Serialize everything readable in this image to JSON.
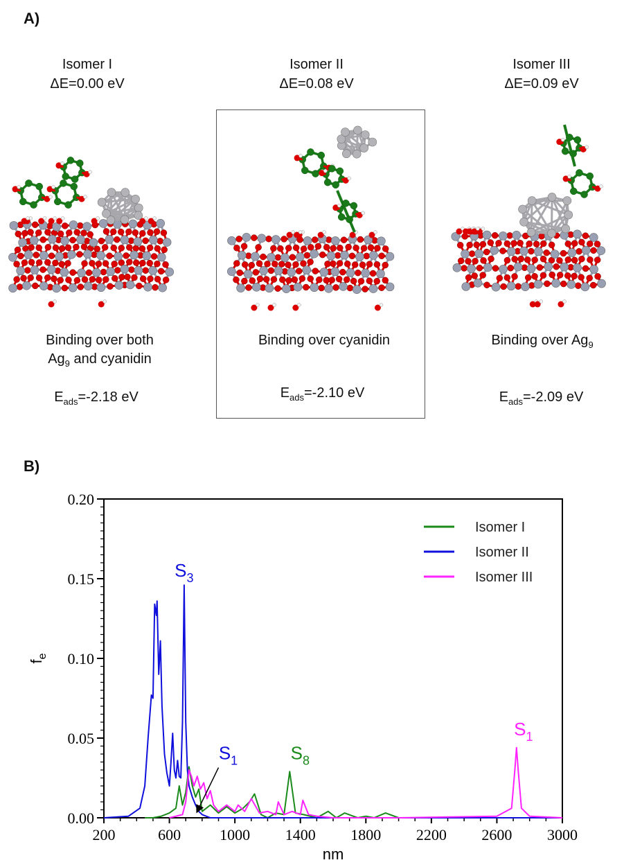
{
  "panel_a": {
    "label": "A)",
    "isomers": [
      {
        "title": "Isomer I",
        "delta_e": "ΔE=0.00 eV",
        "binding_lines": [
          "Binding over both",
          "Ag",
          "9",
          " and cyanidin"
        ],
        "eads_main": "E",
        "eads_sub": "ads",
        "eads_value": "=-2.18 eV"
      },
      {
        "title": "Isomer II",
        "delta_e": "ΔE=0.08 eV",
        "binding_lines": [
          "Binding over cyanidin"
        ],
        "eads_main": "E",
        "eads_sub": "ads",
        "eads_value": "=-2.10 eV"
      },
      {
        "title": "Isomer III",
        "delta_e": "ΔE=0.09 eV",
        "binding_lines": [
          "Binding over Ag",
          "9"
        ],
        "eads_main": "E",
        "eads_sub": "ads",
        "eads_value": "=-2.09 eV"
      }
    ]
  },
  "panel_b": {
    "label": "B)"
  },
  "colors": {
    "isomer1": "#1a8a1a",
    "isomer2": "#1010dd",
    "isomer3": "#ff22ff",
    "oxygen": "#dd0000",
    "silicon": "#9aa0b4",
    "silver": "#b4b4b8",
    "carbon": "#1a7a1a",
    "hydrogen": "#f2f2f2"
  },
  "chart_data": {
    "type": "line",
    "xlabel": "nm",
    "ylabel_main": "f",
    "ylabel_sub": "e",
    "xlim": [
      200,
      3000
    ],
    "ylim": [
      0,
      0.2
    ],
    "x_ticks": [
      200,
      600,
      1000,
      1400,
      1800,
      2200,
      2600,
      3000
    ],
    "x_tick_labels": [
      "200",
      "600",
      "1000",
      "1400",
      "1800",
      "2200",
      "2600",
      "3000"
    ],
    "y_ticks": [
      0,
      0.05,
      0.1,
      0.15,
      0.2
    ],
    "y_tick_labels": [
      "0.00",
      "0.05",
      "0.10",
      "0.15",
      "0.20"
    ],
    "legend_position": "top-right",
    "series": [
      {
        "name": "Isomer I",
        "color": "#1a8a1a",
        "x": [
          450,
          500,
          550,
          600,
          640,
          660,
          680,
          700,
          720,
          740,
          760,
          780,
          800,
          850,
          900,
          950,
          1000,
          1050,
          1090,
          1120,
          1160,
          1200,
          1250,
          1300,
          1335,
          1370,
          1420,
          1500,
          1570,
          1620,
          1670,
          1750,
          1800,
          1850,
          1920,
          2000,
          2400,
          3000
        ],
        "y": [
          0.0,
          0.0,
          0.001,
          0.003,
          0.006,
          0.02,
          0.008,
          0.016,
          0.032,
          0.02,
          0.013,
          0.018,
          0.004,
          0.008,
          0.003,
          0.007,
          0.003,
          0.006,
          0.01,
          0.015,
          0.002,
          0.0,
          0.003,
          0.002,
          0.029,
          0.003,
          0.002,
          0.0,
          0.004,
          0.0,
          0.003,
          0.0,
          0.001,
          0.0,
          0.003,
          0.0,
          0.0,
          0.0
        ]
      },
      {
        "name": "Isomer II",
        "color": "#1010dd",
        "x": [
          200,
          350,
          420,
          450,
          470,
          490,
          500,
          510,
          520,
          525,
          535,
          545,
          555,
          570,
          585,
          600,
          610,
          620,
          630,
          640,
          650,
          660,
          670,
          680,
          690,
          700,
          710,
          720,
          740,
          760,
          780,
          800,
          850,
          900,
          1000,
          1200,
          3000
        ],
        "y": [
          0.0,
          0.001,
          0.006,
          0.02,
          0.05,
          0.077,
          0.075,
          0.134,
          0.127,
          0.136,
          0.09,
          0.111,
          0.07,
          0.04,
          0.028,
          0.02,
          0.035,
          0.053,
          0.03,
          0.025,
          0.036,
          0.026,
          0.025,
          0.06,
          0.146,
          0.06,
          0.03,
          0.02,
          0.013,
          0.008,
          0.004,
          0.002,
          0.0,
          0.0,
          0.0,
          0.0,
          0.0
        ]
      },
      {
        "name": "Isomer III",
        "color": "#ff22ff",
        "x": [
          600,
          680,
          700,
          720,
          735,
          750,
          770,
          790,
          810,
          830,
          850,
          870,
          900,
          950,
          1000,
          1020,
          1060,
          1100,
          1150,
          1200,
          1250,
          1265,
          1300,
          1350,
          1400,
          1415,
          1450,
          1500,
          1600,
          2000,
          2600,
          2690,
          2710,
          2720,
          2730,
          2750,
          2800,
          3000
        ],
        "y": [
          0.0,
          0.002,
          0.01,
          0.03,
          0.026,
          0.02,
          0.026,
          0.018,
          0.022,
          0.012,
          0.017,
          0.008,
          0.004,
          0.008,
          0.004,
          0.008,
          0.004,
          0.012,
          0.003,
          0.004,
          0.002,
          0.01,
          0.002,
          0.004,
          0.002,
          0.011,
          0.002,
          0.001,
          0.0,
          0.0,
          0.001,
          0.006,
          0.03,
          0.044,
          0.03,
          0.006,
          0.001,
          0.0
        ]
      }
    ],
    "annotations": [
      {
        "text": "S",
        "sub": "3",
        "x": 690,
        "y": 0.146,
        "color": "#1010dd"
      },
      {
        "text": "S",
        "sub": "1",
        "x": 790,
        "y": 0.028,
        "color": "#1010dd",
        "arrow_to": [
          770,
          0.004
        ]
      },
      {
        "text": "S",
        "sub": "8",
        "x": 1335,
        "y": 0.029,
        "color": "#1a8a1a"
      },
      {
        "text": "S",
        "sub": "1",
        "x": 2720,
        "y": 0.044,
        "color": "#ff22ff"
      }
    ]
  }
}
